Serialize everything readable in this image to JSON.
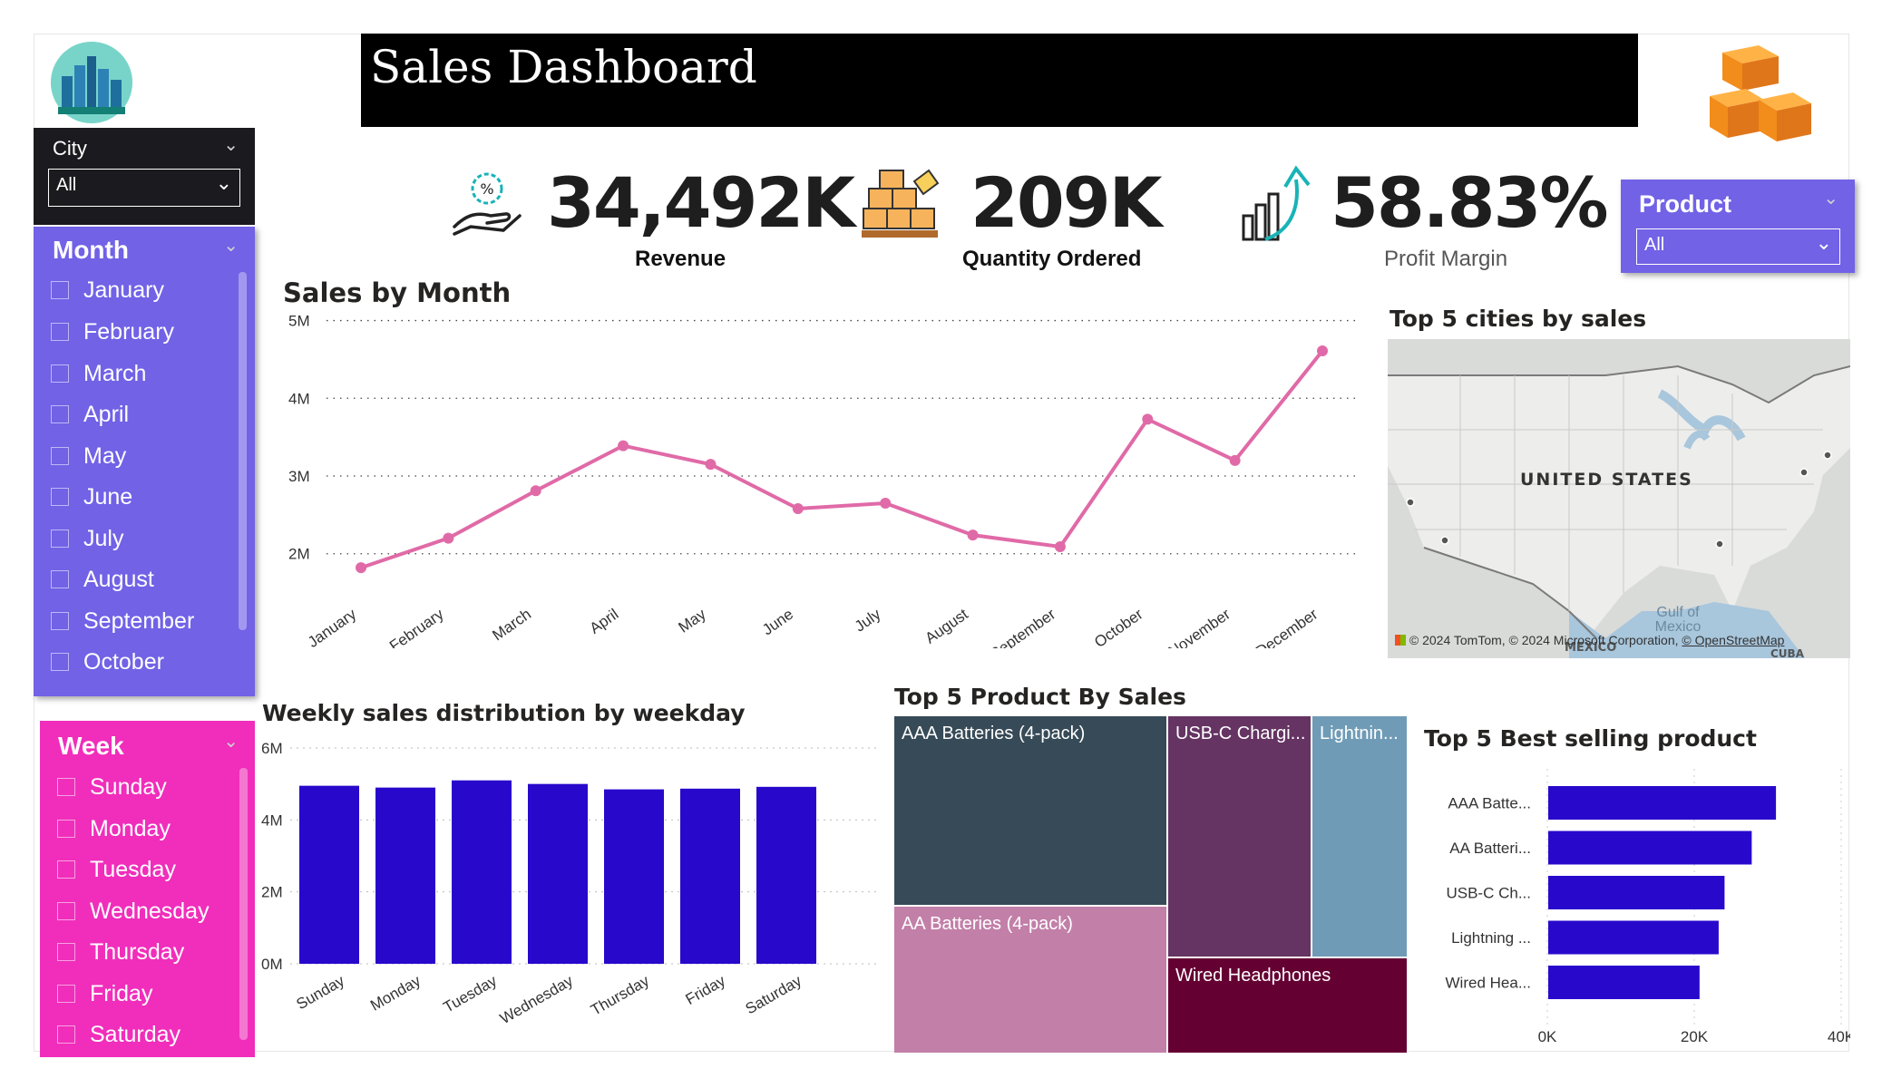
{
  "title": "Sales Dashboard",
  "slicers": {
    "city": {
      "label": "City",
      "selected": "All"
    },
    "month": {
      "label": "Month",
      "items": [
        "January",
        "February",
        "March",
        "April",
        "May",
        "June",
        "July",
        "August",
        "September",
        "October"
      ]
    },
    "week": {
      "label": "Week",
      "items": [
        "Sunday",
        "Monday",
        "Tuesday",
        "Wednesday",
        "Thursday",
        "Friday",
        "Saturday"
      ]
    },
    "product": {
      "label": "Product",
      "selected": "All"
    }
  },
  "kpis": [
    {
      "value": "34,492K",
      "label": "Revenue",
      "icon": "hand-discount-icon"
    },
    {
      "value": "209K",
      "label": "Quantity Ordered",
      "icon": "boxes-icon"
    },
    {
      "value": "58.83%",
      "label": "Profit Margin",
      "icon": "growth-chart-icon"
    }
  ],
  "map": {
    "title": "Top 5 cities by sales",
    "country_label": "UNITED STATES",
    "gulf_label": "Gulf of Mexico",
    "mexico_label": "MEXICO",
    "cuba_label": "CUBA",
    "attribution": "© 2024 TomTom, © 2024 Microsoft Corporation,",
    "attribution_link": "© OpenStreetMap"
  },
  "treemap": {
    "title": "Top 5 Product By Sales",
    "cells": [
      {
        "label": "AAA Batteries (4-pack)",
        "color": "#374a57"
      },
      {
        "label": "AA Batteries (4-pack)",
        "color": "#c27fa8"
      },
      {
        "label": "USB-C Chargi...",
        "color": "#653463"
      },
      {
        "label": "Lightnin...",
        "color": "#6f9bb6"
      },
      {
        "label": "Wired Headphones",
        "color": "#650033"
      }
    ]
  },
  "chart_data": [
    {
      "type": "line",
      "title": "Sales by Month",
      "categories": [
        "January",
        "February",
        "March",
        "April",
        "May",
        "June",
        "July",
        "August",
        "September",
        "October",
        "November",
        "December"
      ],
      "values": [
        1.82,
        2.2,
        2.81,
        3.39,
        3.15,
        2.58,
        2.65,
        2.24,
        2.09,
        3.73,
        3.2,
        4.61
      ],
      "y_ticks": [
        "2M",
        "3M",
        "4M",
        "5M"
      ],
      "ylim": [
        1.6,
        5.1
      ],
      "color": "#e06aa7",
      "grid": true
    },
    {
      "type": "bar",
      "title": "Weekly sales distribution by weekday",
      "categories": [
        "Sunday",
        "Monday",
        "Tuesday",
        "Wednesday",
        "Thursday",
        "Friday",
        "Saturday"
      ],
      "values": [
        4.95,
        4.9,
        5.1,
        5.0,
        4.85,
        4.87,
        4.92
      ],
      "y_ticks": [
        "0M",
        "2M",
        "4M",
        "6M"
      ],
      "ylim": [
        0,
        6
      ],
      "color": "#2809cc",
      "grid": true
    },
    {
      "type": "bar",
      "orientation": "horizontal",
      "title": "Top 5 Best selling product",
      "categories": [
        "AAA Batte...",
        "AA Batteri...",
        "USB-C Ch...",
        "Lightning ...",
        "Wired Hea..."
      ],
      "values": [
        31000,
        27700,
        24000,
        23200,
        20600
      ],
      "x_ticks": [
        "0K",
        "20K",
        "40K"
      ],
      "xlim": [
        0,
        40000
      ],
      "color": "#2809cc",
      "grid": true
    }
  ]
}
